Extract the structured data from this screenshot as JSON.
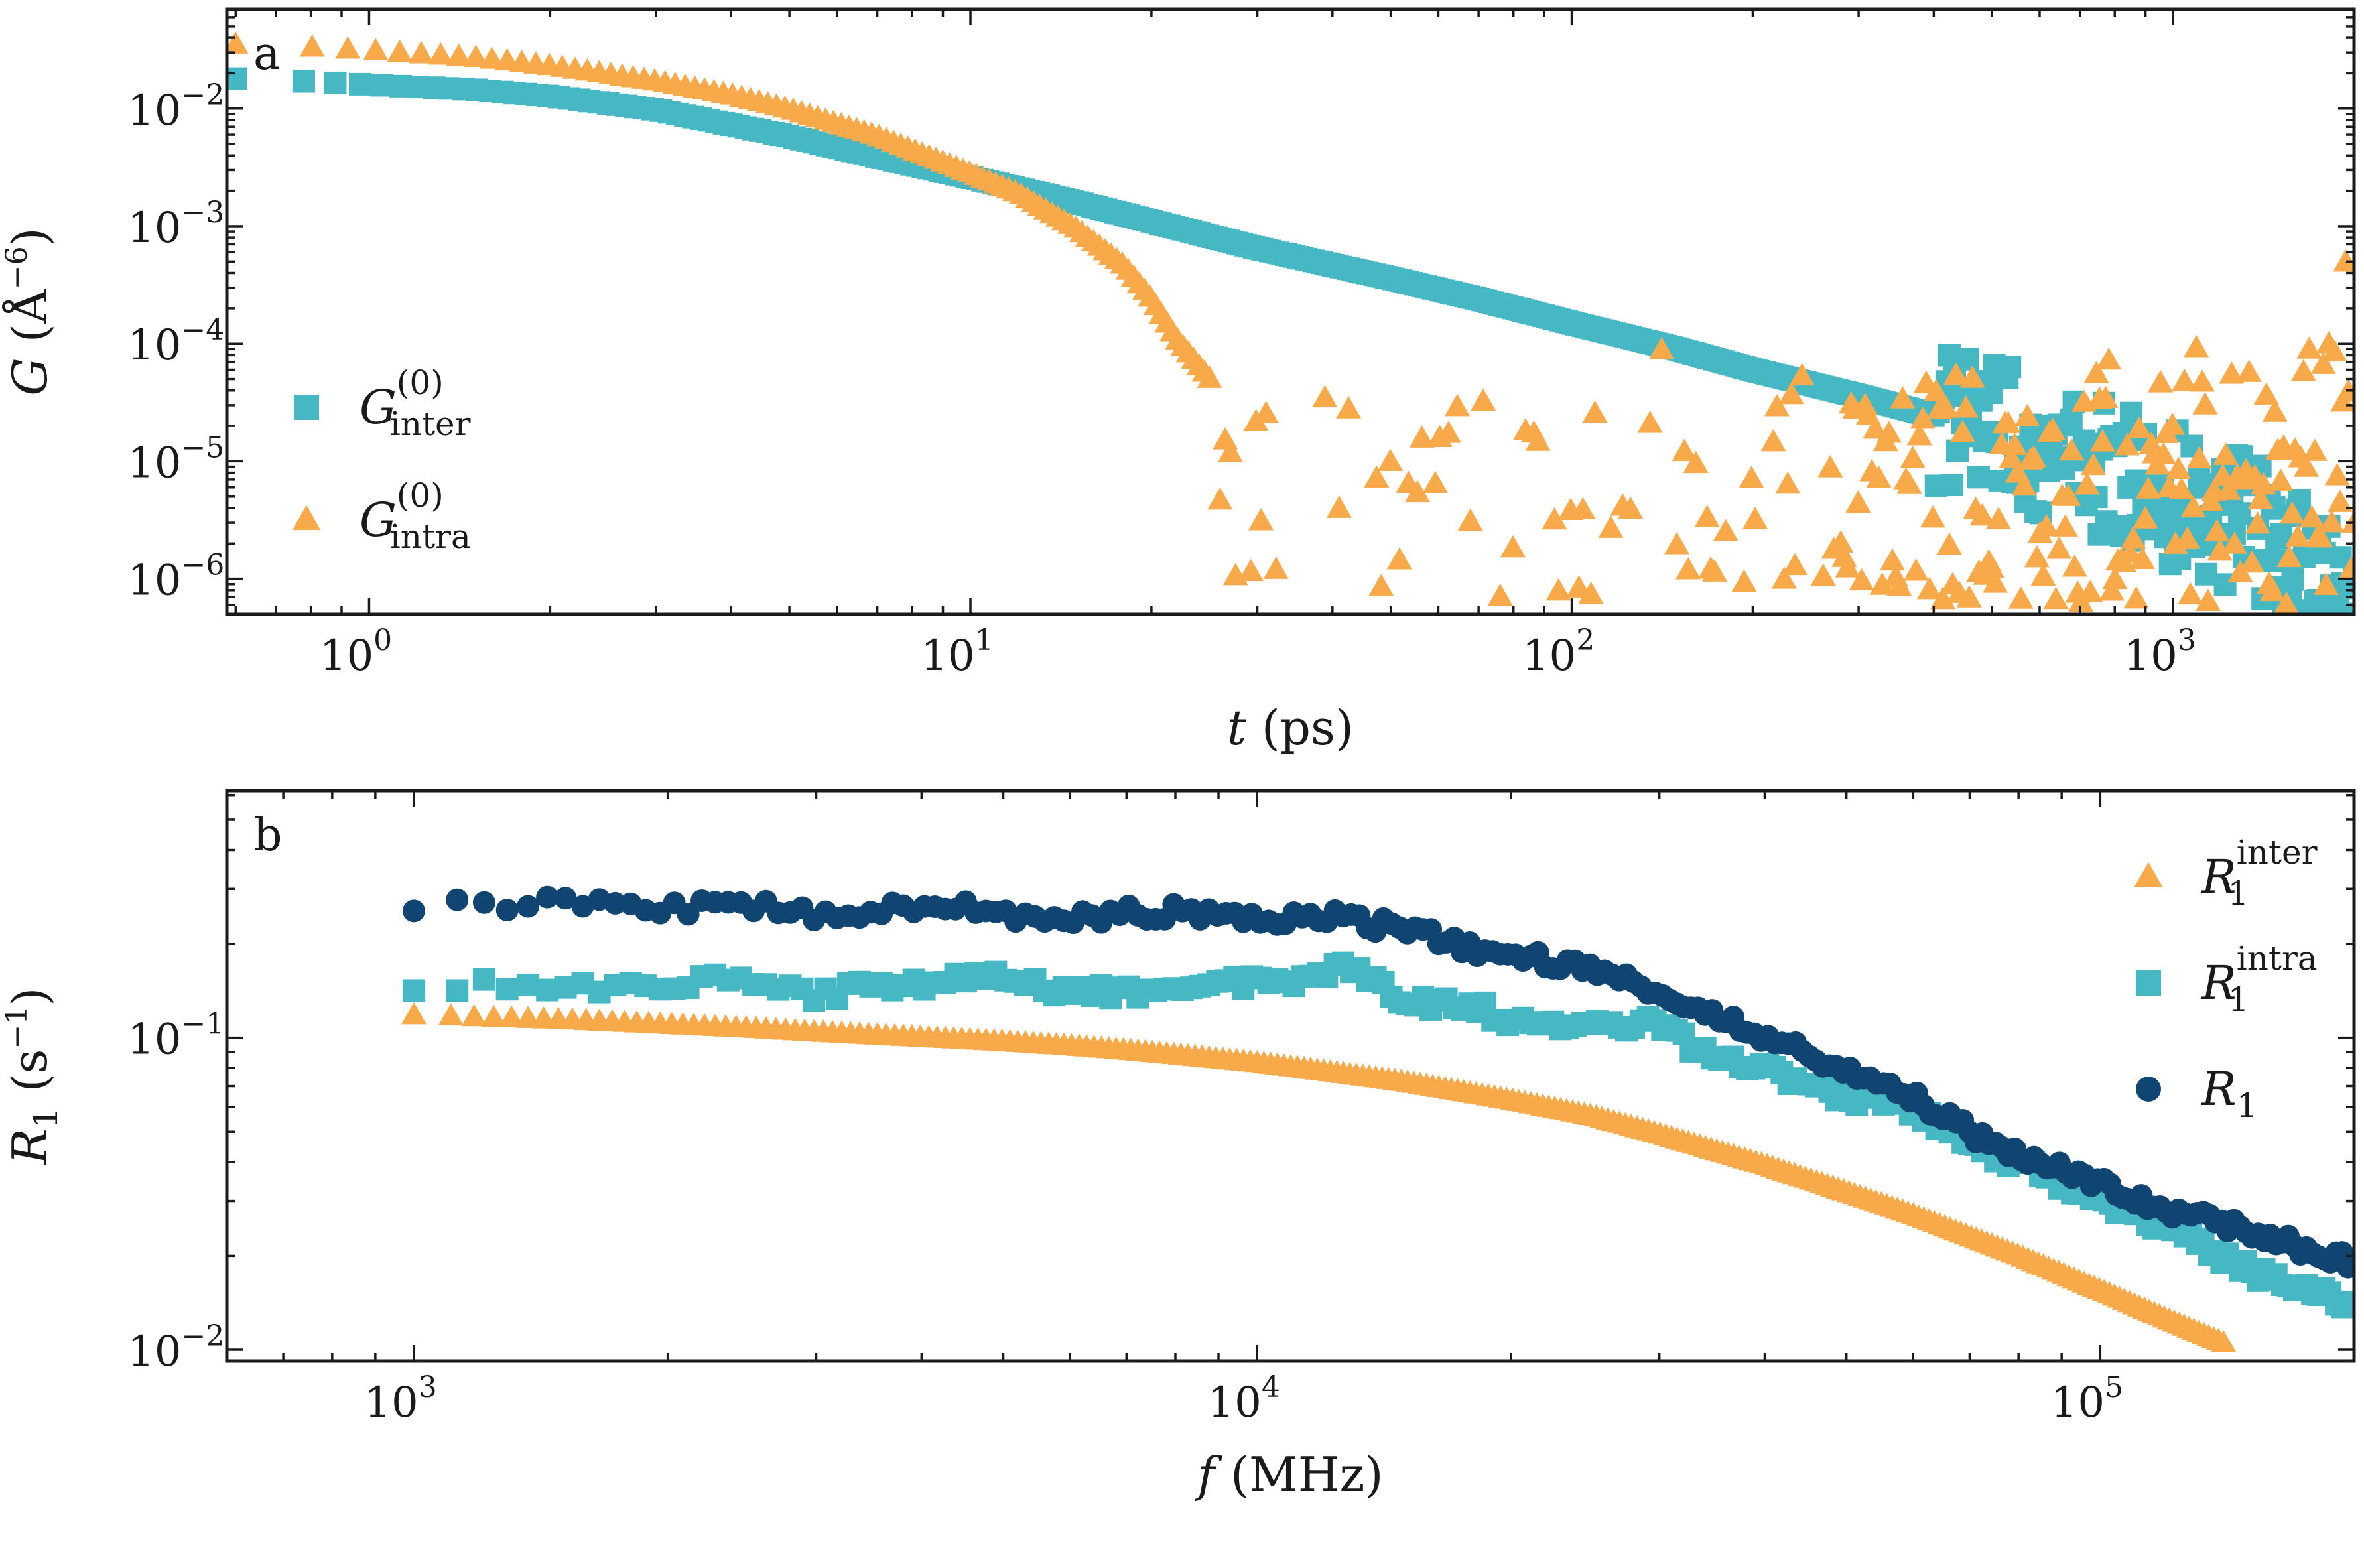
{
  "colors": {
    "inter_teal": "#45b8c4",
    "intra_orange": "#f8aa4b",
    "total_navy": "#0f4570",
    "axis": "#1a1a1a"
  },
  "chart_data": [
    {
      "type": "scatter",
      "panel_label": "a",
      "xlabel": "t (ps)",
      "xlabel_var": "t",
      "xlabel_unit": " (ps)",
      "ylabel": "G (Å−6)",
      "ylabel_var": "G",
      "ylabel_unit_open": " (Å",
      "ylabel_unit_exp": "−6",
      "ylabel_unit_close": ")",
      "xscale": "log",
      "yscale": "log",
      "xlim": [
        0.58,
        2000
      ],
      "ylim": [
        5e-07,
        0.07
      ],
      "xticks": [
        {
          "value": 1,
          "base": "10",
          "exp": "0"
        },
        {
          "value": 10,
          "base": "10",
          "exp": "1"
        },
        {
          "value": 100,
          "base": "10",
          "exp": "2"
        },
        {
          "value": 1000,
          "base": "10",
          "exp": "3"
        }
      ],
      "yticks": [
        {
          "value": 0.01,
          "base": "10",
          "exp": "−2"
        },
        {
          "value": 0.001,
          "base": "10",
          "exp": "−3"
        },
        {
          "value": 0.0001,
          "base": "10",
          "exp": "−4"
        },
        {
          "value": 1e-05,
          "base": "10",
          "exp": "−5"
        },
        {
          "value": 1e-06,
          "base": "10",
          "exp": "−6"
        }
      ],
      "legend_position": "center-left",
      "series": [
        {
          "name": "G_inter^(0)",
          "legend_main": "G",
          "legend_sub": "inter",
          "legend_sup": "(0)",
          "marker": "square",
          "color": "#45b8c4",
          "x": [
            0.6,
            0.8,
            1,
            1.5,
            2,
            3,
            5,
            7,
            10,
            15,
            20,
            30,
            50,
            70,
            100,
            150,
            200,
            300,
            500,
            700,
            1000,
            1500,
            2000
          ],
          "y": [
            0.018,
            0.017,
            0.016,
            0.0145,
            0.0128,
            0.0098,
            0.0058,
            0.0039,
            0.0026,
            0.0016,
            0.0011,
            0.00065,
            0.00036,
            0.00024,
            0.00015,
            9e-05,
            6e-05,
            3.6e-05,
            1.8e-05,
            1e-05,
            5e-06,
            2e-06,
            8e-07
          ]
        },
        {
          "name": "G_intra^(0)",
          "legend_main": "G",
          "legend_sub": "intra",
          "legend_sup": "(0)",
          "marker": "triangle",
          "color": "#f8aa4b",
          "x": [
            0.6,
            0.8,
            1,
            1.5,
            2,
            3,
            4,
            5,
            7,
            10,
            12,
            15,
            18,
            20,
            22,
            25,
            28,
            30,
            32,
            35,
            40,
            45,
            50,
            55,
            60,
            70,
            80,
            90,
            100,
            120,
            150,
            200,
            250,
            300,
            400,
            500,
            600,
            700,
            800,
            1000,
            1200,
            1500,
            1800,
            2000
          ],
          "y": [
            0.035,
            0.033,
            0.031,
            0.027,
            0.023,
            0.017,
            0.013,
            0.0098,
            0.0058,
            0.0028,
            0.0019,
            0.00095,
            0.00046,
            0.00024,
            0.00011,
            5e-05,
            2.5e-05,
            1.2e-05,
            3e-06,
            1.5e-06,
            2.5e-06,
            8e-07,
            6e-06,
            1.5e-06,
            9e-06,
            4e-06,
            3e-05,
            7e-06,
            6e-05,
            2e-05,
            8e-05,
            1.2e-05,
            4.5e-05,
            8e-06,
            6e-05,
            2e-05,
            7e-05,
            2.5e-05,
            9e-05,
            3e-05,
            0.00011,
            2e-05,
            0.00015,
            0.0005
          ]
        }
      ]
    },
    {
      "type": "scatter",
      "panel_label": "b",
      "xlabel": "f (MHz)",
      "xlabel_var": "f",
      "xlabel_unit": " (MHz)",
      "ylabel": "R1 (s−1)",
      "ylabel_var": "R",
      "ylabel_var_sub": "1",
      "ylabel_unit_open": " (s",
      "ylabel_unit_exp": "−1",
      "ylabel_unit_close": ")",
      "xscale": "log",
      "yscale": "log",
      "xlim": [
        600,
        200000
      ],
      "ylim": [
        0.0092,
        0.62
      ],
      "xticks": [
        {
          "value": 1000,
          "base": "10",
          "exp": "3"
        },
        {
          "value": 10000,
          "base": "10",
          "exp": "4"
        },
        {
          "value": 100000,
          "base": "10",
          "exp": "5"
        }
      ],
      "yticks": [
        {
          "value": 0.1,
          "base": "10",
          "exp": "−1"
        },
        {
          "value": 0.01,
          "base": "10",
          "exp": "−2"
        }
      ],
      "legend_position": "top-right",
      "series": [
        {
          "name": "R_1^inter",
          "legend_main": "R",
          "legend_sub": "1",
          "legend_sup": "inter",
          "marker": "triangle",
          "color": "#f8aa4b",
          "x": [
            1000,
            1500,
            2000,
            2500,
            3000,
            4000,
            5000,
            6000,
            7000,
            8000,
            10000,
            12000,
            15000,
            20000,
            25000,
            30000,
            40000,
            50000,
            60000,
            70000,
            80000,
            100000,
            120000,
            140000
          ],
          "y": [
            0.118,
            0.114,
            0.11,
            0.107,
            0.104,
            0.1,
            0.097,
            0.094,
            0.091,
            0.088,
            0.083,
            0.078,
            0.072,
            0.063,
            0.056,
            0.049,
            0.039,
            0.032,
            0.027,
            0.023,
            0.02,
            0.0155,
            0.0125,
            0.0105
          ]
        },
        {
          "name": "R_1^intra",
          "legend_main": "R",
          "legend_sub": "1",
          "legend_sup": "intra",
          "marker": "square",
          "color": "#45b8c4",
          "x": [
            1000,
            1500,
            2000,
            2500,
            3000,
            3500,
            4000,
            4500,
            5000,
            5500,
            6000,
            7000,
            8000,
            9000,
            10000,
            11000,
            12000,
            13000,
            15000,
            18000,
            20000,
            25000,
            30000,
            35000,
            40000,
            50000,
            60000,
            70000,
            80000,
            100000,
            120000,
            150000,
            200000
          ],
          "y": [
            0.15,
            0.15,
            0.145,
            0.155,
            0.135,
            0.15,
            0.15,
            0.16,
            0.16,
            0.15,
            0.14,
            0.14,
            0.15,
            0.155,
            0.15,
            0.155,
            0.16,
            0.17,
            0.13,
            0.13,
            0.11,
            0.11,
            0.11,
            0.085,
            0.08,
            0.065,
            0.06,
            0.045,
            0.04,
            0.03,
            0.025,
            0.018,
            0.014
          ]
        },
        {
          "name": "R_1",
          "legend_main": "R",
          "legend_sub": "1",
          "legend_sup": "",
          "marker": "circle",
          "color": "#0f4570",
          "x": [
            1000,
            1500,
            2000,
            2500,
            3000,
            3500,
            4000,
            4500,
            5000,
            5500,
            6000,
            7000,
            8000,
            9000,
            10000,
            11000,
            12000,
            13000,
            15000,
            18000,
            20000,
            25000,
            30000,
            35000,
            40000,
            50000,
            60000,
            70000,
            80000,
            100000,
            120000,
            150000,
            200000
          ],
          "y": [
            0.27,
            0.27,
            0.26,
            0.27,
            0.245,
            0.255,
            0.26,
            0.26,
            0.255,
            0.24,
            0.245,
            0.25,
            0.255,
            0.24,
            0.24,
            0.24,
            0.245,
            0.24,
            0.22,
            0.195,
            0.185,
            0.165,
            0.14,
            0.12,
            0.1,
            0.08,
            0.065,
            0.05,
            0.042,
            0.034,
            0.028,
            0.024,
            0.019
          ]
        }
      ]
    }
  ]
}
